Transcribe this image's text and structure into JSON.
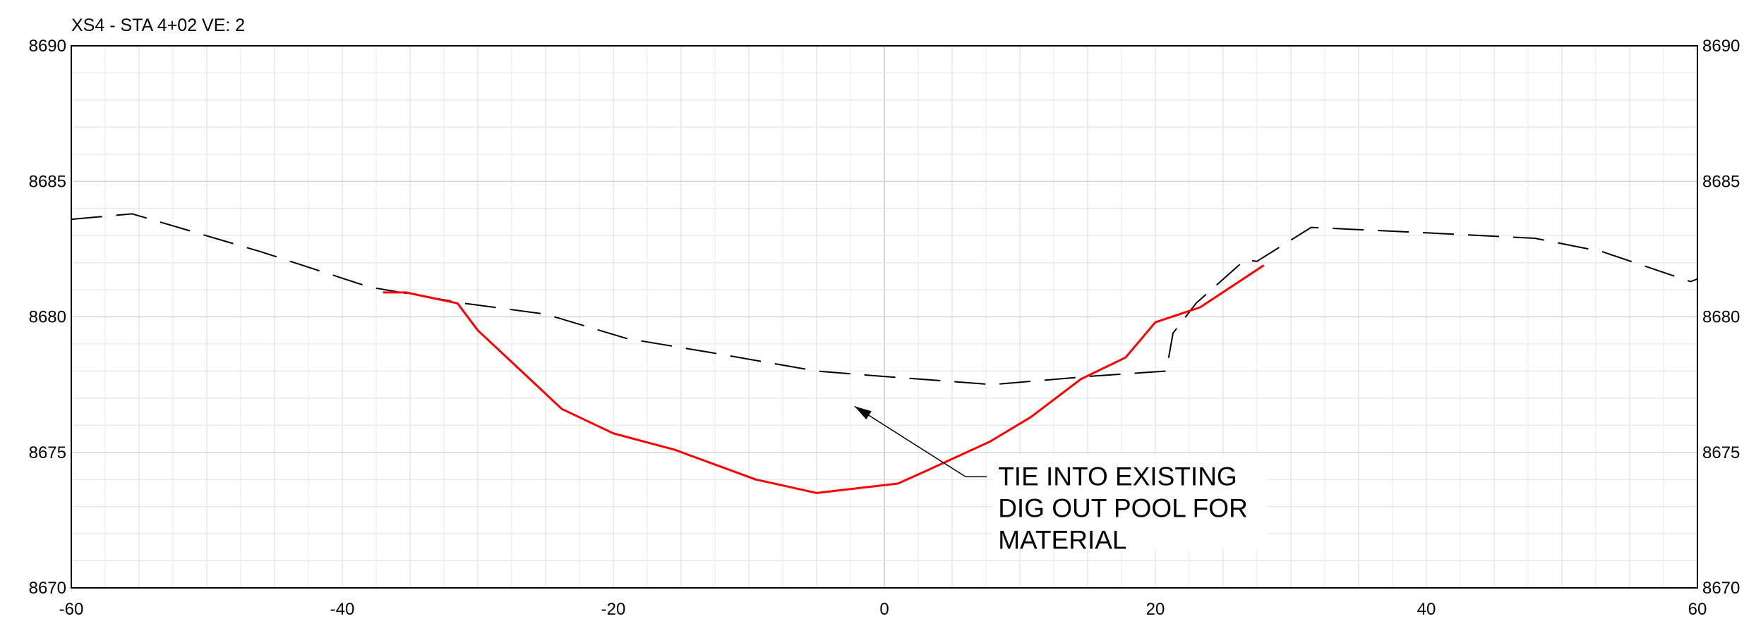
{
  "chart_data": {
    "type": "line",
    "title": "XS4 - STA 4+02 VE: 2",
    "xlim": [
      -60,
      60
    ],
    "ylim": [
      8670,
      8690
    ],
    "x_ticks": [
      "-60",
      "-40",
      "-20",
      "0",
      "20",
      "40",
      "60"
    ],
    "y_ticks": [
      "8670",
      "8675",
      "8680",
      "8685",
      "8690"
    ],
    "grid": true,
    "series": [
      {
        "style": "dashed",
        "color": "#000000",
        "points": [
          [
            -60,
            8683.6
          ],
          [
            -55.5,
            8683.8
          ],
          [
            -46,
            8682.4
          ],
          [
            -38,
            8681.1
          ],
          [
            -31,
            8680.5
          ],
          [
            -25,
            8680.1
          ],
          [
            -19,
            8679.2
          ],
          [
            -13,
            8678.7
          ],
          [
            -5,
            8678.0
          ],
          [
            0,
            8677.8
          ],
          [
            8,
            8677.5
          ],
          [
            15,
            8677.8
          ],
          [
            20.8,
            8678.0
          ],
          [
            21.3,
            8679.4
          ],
          [
            23,
            8680.5
          ],
          [
            26.6,
            8682.1
          ],
          [
            27.5,
            8682.05
          ],
          [
            31.5,
            8683.3
          ],
          [
            40,
            8683.1
          ],
          [
            48,
            8682.9
          ],
          [
            53,
            8682.4
          ],
          [
            59.5,
            8681.3
          ],
          [
            60,
            8681.4
          ]
        ]
      },
      {
        "style": "solid",
        "color": "#ff0000",
        "points": [
          [
            -37,
            8680.9
          ],
          [
            -35.3,
            8680.9
          ],
          [
            -31.5,
            8680.5
          ],
          [
            -30,
            8679.5
          ],
          [
            -27,
            8678.1
          ],
          [
            -23.8,
            8676.6
          ],
          [
            -20,
            8675.7
          ],
          [
            -15.5,
            8675.1
          ],
          [
            -9.5,
            8674.0
          ],
          [
            -5,
            8673.5
          ],
          [
            1,
            8673.85
          ],
          [
            3,
            8674.3
          ],
          [
            7.8,
            8675.4
          ],
          [
            10.8,
            8676.3
          ],
          [
            14.5,
            8677.7
          ],
          [
            17.8,
            8678.5
          ],
          [
            20,
            8679.8
          ],
          [
            23.3,
            8680.35
          ],
          [
            28,
            8681.9
          ]
        ]
      }
    ],
    "annotations": [
      {
        "lines": [
          "TIE INTO EXISTING",
          "DIG OUT POOL FOR",
          "MATERIAL"
        ],
        "arrow_from": [
          6,
          8674.1
        ],
        "arrow_to": [
          -2.2,
          8676.7
        ]
      }
    ]
  }
}
